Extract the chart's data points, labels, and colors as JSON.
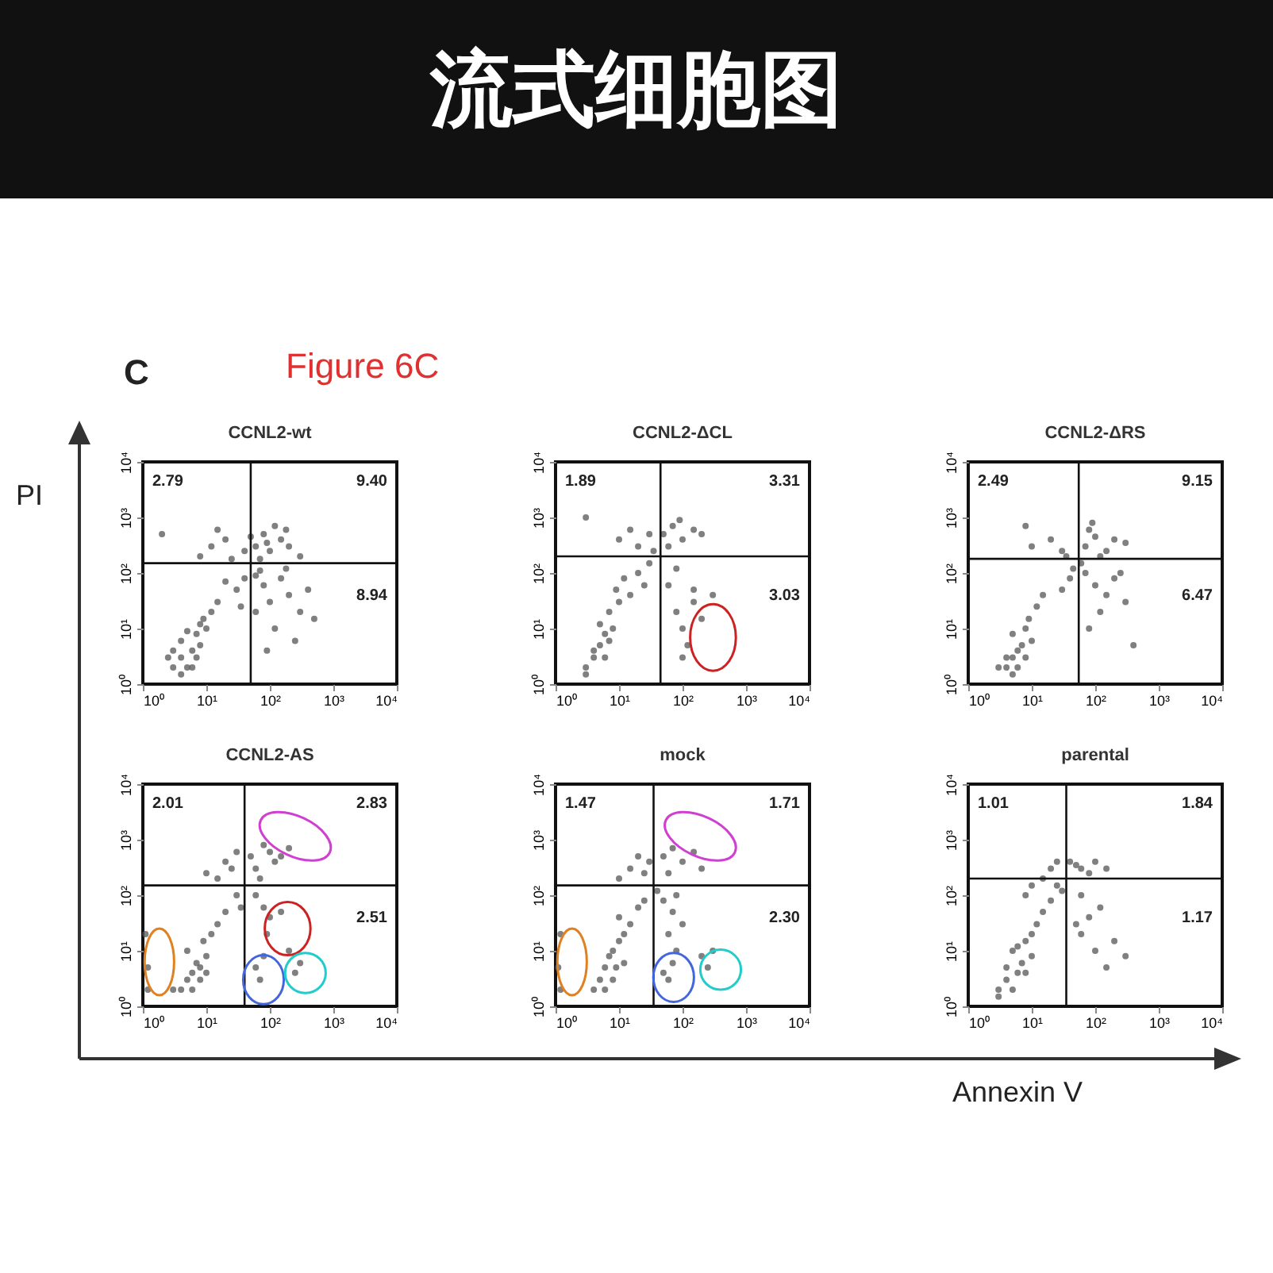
{
  "chart_data": [
    {
      "type": "other",
      "title": "流式细胞图",
      "annotations": [
        "C",
        "Figure 6C"
      ],
      "ylabel": "PI",
      "xlabel": "Annexin V"
    },
    {
      "type": "scatter",
      "title": "CCNL2-wt",
      "log": "xy",
      "marker": "circle",
      "grid": false,
      "xlim": [
        1,
        10000
      ],
      "ylim": [
        1,
        10000
      ],
      "xticks": [
        {
          "value": 1,
          "label": "10⁰"
        },
        {
          "value": 10,
          "label": "10¹"
        },
        {
          "value": 100,
          "label": "10²"
        },
        {
          "value": 1000,
          "label": "10³"
        },
        {
          "value": 10000,
          "label": "10⁴"
        }
      ],
      "yticks": [
        {
          "value": 1,
          "label": "10⁰"
        },
        {
          "value": 10,
          "label": "10¹"
        },
        {
          "value": 100,
          "label": "10²"
        },
        {
          "value": 1000,
          "label": "10³"
        },
        {
          "value": 10000,
          "label": "10⁴"
        }
      ],
      "ref_lines": [
        {
          "axis": "x",
          "value": 50
        },
        {
          "axis": "y",
          "value": 150
        }
      ],
      "annotations": [
        "2.79",
        "9.40",
        "8.94"
      ],
      "series": [
        {
          "color": "#555555",
          "x": [
            3,
            4,
            5,
            6,
            4,
            7,
            8,
            10,
            5,
            3,
            6,
            9,
            12,
            15,
            4,
            7,
            2.5,
            8,
            8,
            12,
            20,
            25,
            15,
            2,
            60,
            80,
            100,
            150,
            200,
            70,
            120,
            300,
            90,
            180,
            40,
            50,
            60,
            80,
            100,
            150,
            200,
            300,
            120,
            250,
            70,
            400,
            500,
            90,
            60,
            180,
            30,
            40,
            20,
            35
          ],
          "values": [
            2,
            3,
            2,
            4,
            6,
            8,
            5,
            10,
            9,
            4,
            2,
            15,
            20,
            30,
            1.5,
            3,
            3,
            12,
            200,
            300,
            400,
            180,
            600,
            500,
            300,
            500,
            250,
            400,
            300,
            180,
            700,
            200,
            350,
            600,
            250,
            450,
            90,
            60,
            30,
            80,
            40,
            20,
            10,
            6,
            110,
            50,
            15,
            4,
            20,
            120,
            50,
            80,
            70,
            25
          ]
        }
      ]
    },
    {
      "type": "scatter",
      "title": "CCNL2-ΔCL",
      "log": "xy",
      "marker": "circle",
      "grid": false,
      "xlim": [
        1,
        10000
      ],
      "ylim": [
        1,
        10000
      ],
      "xticks": [
        {
          "value": 1,
          "label": "10⁰"
        },
        {
          "value": 10,
          "label": "10¹"
        },
        {
          "value": 100,
          "label": "10²"
        },
        {
          "value": 1000,
          "label": "10³"
        },
        {
          "value": 10000,
          "label": "10⁴"
        }
      ],
      "yticks": [
        {
          "value": 1,
          "label": "10⁰"
        },
        {
          "value": 10,
          "label": "10¹"
        },
        {
          "value": 100,
          "label": "10²"
        },
        {
          "value": 1000,
          "label": "10³"
        },
        {
          "value": 10000,
          "label": "10⁴"
        }
      ],
      "ref_lines": [
        {
          "axis": "x",
          "value": 45
        },
        {
          "axis": "y",
          "value": 200
        }
      ],
      "annotations": [
        "1.89",
        "3.31",
        "3.03"
      ],
      "series": [
        {
          "color": "#555555",
          "x": [
            3,
            4,
            5,
            6,
            5,
            7,
            8,
            10,
            4,
            6,
            9,
            12,
            15,
            3,
            7,
            20,
            25,
            10,
            15,
            20,
            3,
            30,
            50,
            70,
            100,
            150,
            60,
            90,
            200,
            80,
            100,
            150,
            120,
            200,
            60,
            80,
            150,
            100,
            300,
            30,
            35
          ],
          "values": [
            2,
            3,
            5,
            8,
            12,
            20,
            10,
            30,
            4,
            3,
            50,
            80,
            40,
            1.5,
            6,
            100,
            60,
            400,
            600,
            300,
            1000,
            500,
            500,
            700,
            400,
            600,
            300,
            900,
            500,
            20,
            10,
            30,
            5,
            15,
            60,
            120,
            50,
            3,
            40,
            150,
            250
          ]
        }
      ]
    },
    {
      "type": "scatter",
      "title": "CCNL2-ΔRS",
      "log": "xy",
      "marker": "circle",
      "grid": false,
      "xlim": [
        1,
        10000
      ],
      "ylim": [
        1,
        10000
      ],
      "xticks": [
        {
          "value": 1,
          "label": "10⁰"
        },
        {
          "value": 10,
          "label": "10¹"
        },
        {
          "value": 100,
          "label": "10²"
        },
        {
          "value": 1000,
          "label": "10³"
        },
        {
          "value": 10000,
          "label": "10⁴"
        }
      ],
      "yticks": [
        {
          "value": 1,
          "label": "10⁰"
        },
        {
          "value": 10,
          "label": "10¹"
        },
        {
          "value": 100,
          "label": "10²"
        },
        {
          "value": 1000,
          "label": "10³"
        },
        {
          "value": 10000,
          "label": "10⁴"
        }
      ],
      "ref_lines": [
        {
          "axis": "x",
          "value": 55
        },
        {
          "axis": "y",
          "value": 180
        }
      ],
      "annotations": [
        "2.49",
        "9.15",
        "6.47"
      ],
      "series": [
        {
          "color": "#555555",
          "x": [
            4,
            5,
            6,
            7,
            5,
            8,
            10,
            6,
            4,
            9,
            12,
            15,
            5,
            8,
            3,
            10,
            20,
            30,
            8,
            70,
            100,
            150,
            200,
            80,
            120,
            300,
            90,
            70,
            100,
            150,
            120,
            200,
            80,
            300,
            400,
            60,
            250,
            40,
            30,
            45,
            35
          ],
          "values": [
            2,
            3,
            2,
            5,
            8,
            10,
            6,
            4,
            3,
            15,
            25,
            40,
            1.5,
            3,
            2,
            300,
            400,
            250,
            700,
            300,
            450,
            250,
            400,
            600,
            200,
            350,
            800,
            100,
            60,
            40,
            20,
            80,
            10,
            30,
            5,
            150,
            100,
            80,
            50,
            120,
            200
          ]
        }
      ]
    },
    {
      "type": "scatter",
      "title": "CCNL2-AS",
      "log": "xy",
      "marker": "circle",
      "grid": false,
      "xlim": [
        1,
        10000
      ],
      "ylim": [
        1,
        10000
      ],
      "xticks": [
        {
          "value": 1,
          "label": "10⁰"
        },
        {
          "value": 10,
          "label": "10¹"
        },
        {
          "value": 100,
          "label": "10²"
        },
        {
          "value": 1000,
          "label": "10³"
        },
        {
          "value": 10000,
          "label": "10⁴"
        }
      ],
      "yticks": [
        {
          "value": 1,
          "label": "10⁰"
        },
        {
          "value": 10,
          "label": "10¹"
        },
        {
          "value": 100,
          "label": "10²"
        },
        {
          "value": 1000,
          "label": "10³"
        },
        {
          "value": 10000,
          "label": "10⁴"
        }
      ],
      "ref_lines": [
        {
          "axis": "x",
          "value": 40
        },
        {
          "axis": "y",
          "value": 150
        }
      ],
      "annotations": [
        "2.01",
        "2.83",
        "2.51"
      ],
      "series": [
        {
          "color": "#555555",
          "x": [
            4,
            5,
            6,
            7,
            8,
            10,
            5,
            9,
            12,
            15,
            6,
            8,
            3,
            10,
            20,
            15,
            20,
            25,
            30,
            10,
            50,
            80,
            100,
            150,
            200,
            60,
            70,
            120,
            80,
            100,
            90,
            150,
            60,
            70,
            80,
            200,
            300,
            250,
            60,
            1.2,
            1.2,
            1.1,
            30,
            35
          ],
          "values": [
            2,
            3,
            4,
            6,
            5,
            8,
            10,
            15,
            20,
            30,
            2,
            3,
            2,
            4,
            50,
            200,
            400,
            300,
            600,
            250,
            500,
            800,
            600,
            500,
            700,
            300,
            200,
            400,
            60,
            40,
            20,
            50,
            5,
            3,
            8,
            10,
            6,
            4,
            100,
            2,
            5,
            20,
            100,
            60
          ]
        }
      ]
    },
    {
      "type": "scatter",
      "title": "mock",
      "log": "xy",
      "marker": "circle",
      "grid": false,
      "xlim": [
        1,
        10000
      ],
      "ylim": [
        1,
        10000
      ],
      "xticks": [
        {
          "value": 1,
          "label": "10⁰"
        },
        {
          "value": 10,
          "label": "10¹"
        },
        {
          "value": 100,
          "label": "10²"
        },
        {
          "value": 1000,
          "label": "10³"
        },
        {
          "value": 10000,
          "label": "10⁴"
        }
      ],
      "yticks": [
        {
          "value": 1,
          "label": "10⁰"
        },
        {
          "value": 10,
          "label": "10¹"
        },
        {
          "value": 100,
          "label": "10²"
        },
        {
          "value": 1000,
          "label": "10³"
        },
        {
          "value": 10000,
          "label": "10⁴"
        }
      ],
      "ref_lines": [
        {
          "axis": "x",
          "value": 35
        },
        {
          "axis": "y",
          "value": 150
        }
      ],
      "annotations": [
        "1.47",
        "1.71",
        "2.30"
      ],
      "series": [
        {
          "color": "#555555",
          "x": [
            5,
            6,
            7,
            8,
            10,
            9,
            12,
            15,
            6,
            8,
            4,
            10,
            20,
            25,
            12,
            15,
            20,
            25,
            10,
            30,
            50,
            70,
            100,
            150,
            200,
            60,
            50,
            70,
            100,
            60,
            80,
            50,
            60,
            70,
            200,
            250,
            300,
            80,
            1.2,
            1.1,
            1.2,
            40
          ],
          "values": [
            3,
            5,
            8,
            10,
            15,
            5,
            20,
            30,
            2,
            3,
            2,
            40,
            60,
            80,
            6,
            300,
            500,
            250,
            200,
            400,
            500,
            700,
            400,
            600,
            300,
            250,
            80,
            50,
            30,
            20,
            10,
            4,
            3,
            6,
            8,
            5,
            10,
            100,
            2,
            5,
            20,
            120
          ]
        }
      ]
    },
    {
      "type": "scatter",
      "title": "parental",
      "log": "xy",
      "marker": "circle",
      "grid": false,
      "xlim": [
        1,
        10000
      ],
      "ylim": [
        1,
        10000
      ],
      "xticks": [
        {
          "value": 1,
          "label": "10⁰"
        },
        {
          "value": 10,
          "label": "10¹"
        },
        {
          "value": 100,
          "label": "10²"
        },
        {
          "value": 1000,
          "label": "10³"
        },
        {
          "value": 10000,
          "label": "10⁴"
        }
      ],
      "yticks": [
        {
          "value": 1,
          "label": "10⁰"
        },
        {
          "value": 10,
          "label": "10¹"
        },
        {
          "value": 100,
          "label": "10²"
        },
        {
          "value": 1000,
          "label": "10³"
        },
        {
          "value": 10000,
          "label": "10⁴"
        }
      ],
      "ref_lines": [
        {
          "axis": "x",
          "value": 35
        },
        {
          "axis": "y",
          "value": 200
        }
      ],
      "annotations": [
        "1.01",
        "1.84",
        "1.17"
      ],
      "series": [
        {
          "color": "#555555",
          "x": [
            3,
            4,
            5,
            6,
            4,
            7,
            8,
            10,
            5,
            6,
            8,
            10,
            3,
            12,
            15,
            15,
            20,
            25,
            10,
            8,
            40,
            50,
            60,
            80,
            100,
            150,
            50,
            60,
            80,
            100,
            120,
            200,
            300,
            150,
            60,
            20,
            25,
            30
          ],
          "values": [
            2,
            3,
            2,
            4,
            5,
            6,
            4,
            8,
            10,
            12,
            15,
            20,
            1.5,
            30,
            50,
            200,
            300,
            400,
            150,
            100,
            400,
            350,
            300,
            250,
            400,
            300,
            30,
            20,
            40,
            10,
            60,
            15,
            8,
            5,
            100,
            80,
            150,
            120
          ]
        }
      ]
    }
  ]
}
